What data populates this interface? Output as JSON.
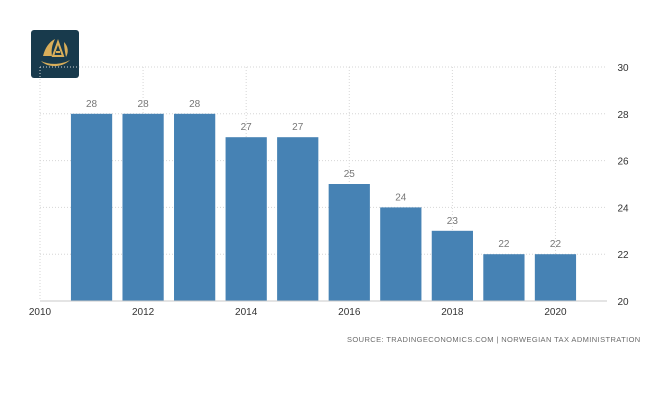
{
  "logo": {
    "name": "brand-logo",
    "colors": {
      "background": "#183a4c",
      "emblem": "#d9ae5a"
    }
  },
  "source": "SOURCE: TRADINGECONOMICS.COM  |  NORWEGIAN TAX ADMINISTRATION",
  "colors": {
    "bar": "#4682b4",
    "grid": "#d6d6d6",
    "axis_text": "#333333",
    "label_text": "#777777"
  },
  "chart_data": {
    "type": "bar",
    "x": [
      2011,
      2012,
      2013,
      2014,
      2015,
      2016,
      2017,
      2018,
      2019,
      2020
    ],
    "values": [
      28,
      28,
      28,
      27,
      27,
      25,
      24,
      23,
      22,
      22
    ],
    "data_labels": [
      "28",
      "28",
      "28",
      "27",
      "27",
      "25",
      "24",
      "23",
      "22",
      "22"
    ],
    "xlim": [
      2010,
      2021
    ],
    "xticks": [
      2010,
      2012,
      2014,
      2016,
      2018,
      2020
    ],
    "xtick_labels": [
      "2010",
      "2012",
      "2014",
      "2016",
      "2018",
      "2020"
    ],
    "ylim": [
      20,
      30
    ],
    "yticks": [
      20,
      22,
      24,
      26,
      28,
      30
    ],
    "ytick_labels": [
      "20",
      "22",
      "24",
      "26",
      "28",
      "30"
    ],
    "y_axis_side": "right",
    "grid": true,
    "title": "",
    "xlabel": "",
    "ylabel": ""
  }
}
